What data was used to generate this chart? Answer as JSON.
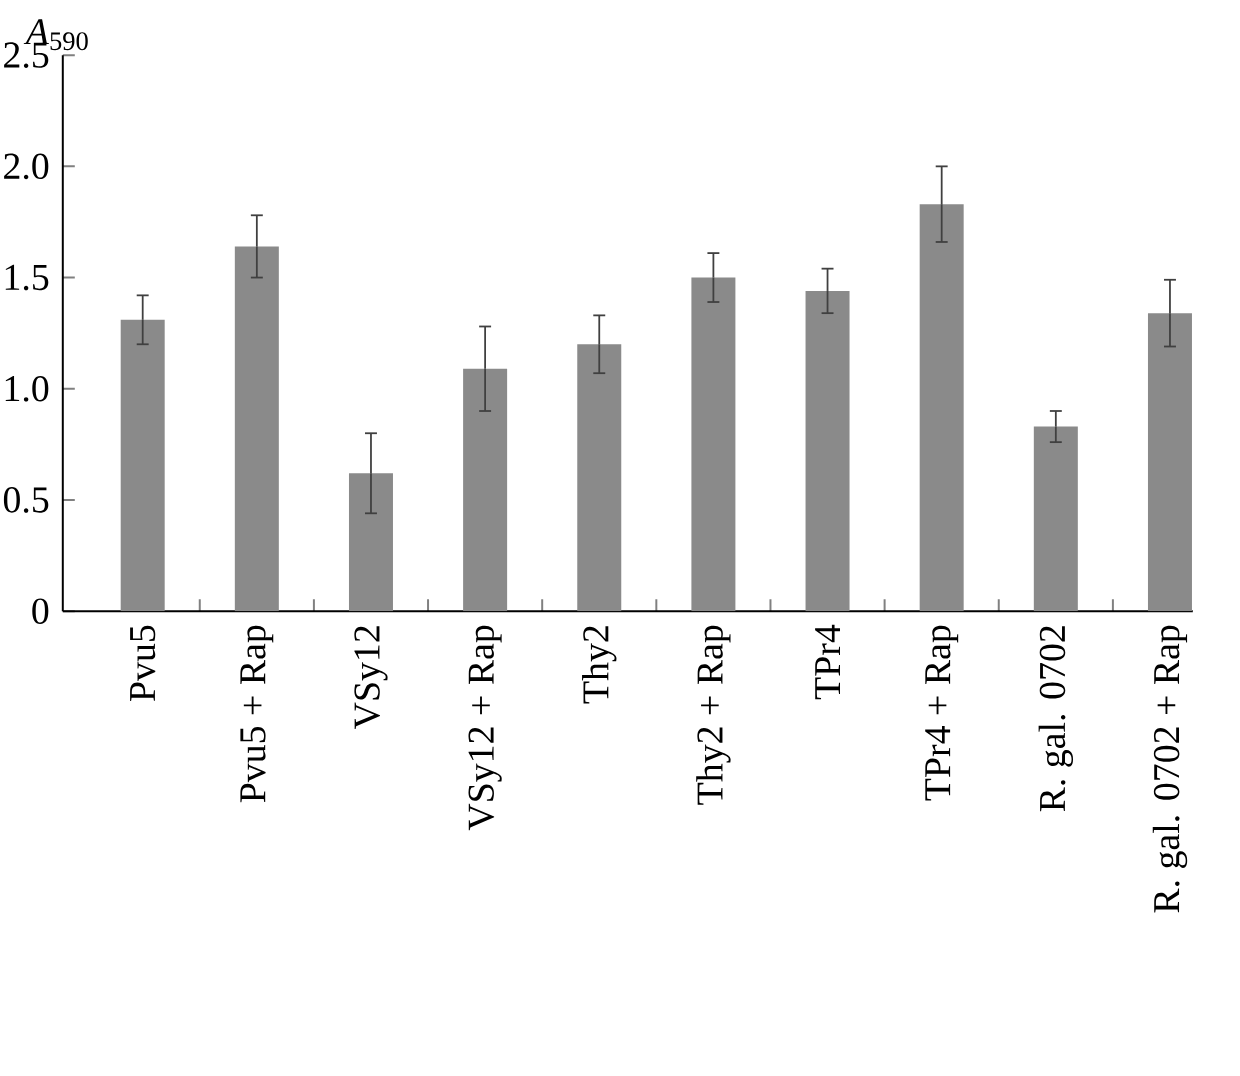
{
  "chart_data": {
    "type": "bar",
    "ylabel": "*A*$_{590}$",
    "categories": [
      "Pvu5",
      "Pvu5 + Rap",
      "VSy12",
      "VSy12 + Rap",
      "Thy2",
      "Thy2 + Rap",
      "TPr4",
      "TPr4 + Rap",
      "R. gal. 0702",
      "R. gal. 0702 + Rap"
    ],
    "values": [
      1.31,
      1.64,
      0.62,
      1.09,
      1.2,
      1.5,
      1.44,
      1.83,
      0.83,
      1.34
    ],
    "errors": [
      0.11,
      0.14,
      0.18,
      0.19,
      0.13,
      0.11,
      0.1,
      0.17,
      0.07,
      0.15
    ],
    "color": "#8a8a8a",
    "ylim": [
      0,
      2.5
    ],
    "yticks": [
      0,
      0.5,
      {
        "value": 1,
        "label": "1.0"
      },
      1.5,
      {
        "value": 2,
        "label": "2.0"
      },
      2.5
    ]
  }
}
